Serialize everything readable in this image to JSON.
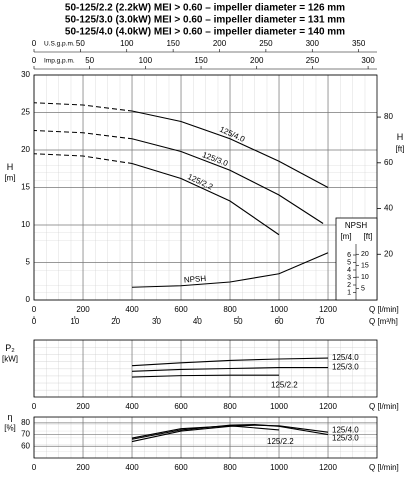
{
  "chart_data": [
    {
      "type": "line",
      "title": [
        "50-125/2.2 (2.2kW) MEI > 0.60 – impeller diameter = 126 mm",
        "50-125/3.0 (3.0kW) MEI > 0.60 – impeller diameter = 131 mm",
        "50-125/4.0 (4.0kW) MEI > 0.60 – impeller diameter = 140 mm"
      ],
      "xlabel": "Q [l/min]",
      "ylabel": "H",
      "ylabel_unit": "[m]",
      "y2label": "H",
      "y2label_unit": "[ft]",
      "xlim": [
        0,
        1400
      ],
      "xticks": [
        0,
        200,
        400,
        600,
        800,
        1000,
        1200
      ],
      "ylim": [
        0,
        30
      ],
      "yticks": [
        0,
        5,
        10,
        15,
        20,
        25,
        30
      ],
      "y2lim": [
        0,
        98.4
      ],
      "y2ticks": [
        20,
        40,
        60,
        80
      ],
      "grid": true,
      "top_axes": [
        {
          "label": "U.S.g.p.m.",
          "xlim": [
            0,
            369.8
          ],
          "xticks": [
            0,
            50,
            100,
            150,
            200,
            250,
            300,
            350
          ]
        },
        {
          "label": "Imp.g.p.m.",
          "xlim": [
            0,
            308
          ],
          "xticks": [
            0,
            50,
            100,
            150,
            200,
            250,
            300
          ]
        }
      ],
      "bottom_axis2": {
        "label": "Q [m³/h]",
        "xlim": [
          0,
          84
        ],
        "xticks": [
          0,
          10,
          20,
          30,
          40,
          50,
          60,
          70
        ]
      },
      "npsh_scale": {
        "label": "NPSH",
        "unit_left": "[m]",
        "unit_right": "[ft]",
        "yticks": [
          1,
          2,
          3,
          4,
          5,
          6
        ],
        "y2ticks": [
          5,
          10,
          15,
          20
        ]
      },
      "series": [
        {
          "name": "125/4.0",
          "color": "#000000",
          "x": [
            0,
            200,
            400,
            600,
            800,
            1000,
            1200
          ],
          "values": [
            26.3,
            26,
            25.2,
            23.8,
            21.5,
            18.5,
            15
          ]
        },
        {
          "name": "125/3.0",
          "color": "#000000",
          "x": [
            0,
            200,
            400,
            600,
            800,
            1000,
            1180
          ],
          "values": [
            22.6,
            22.3,
            21.5,
            19.8,
            17.3,
            14,
            10.2
          ]
        },
        {
          "name": "125/2.2",
          "color": "#000000",
          "x": [
            0,
            200,
            400,
            600,
            800,
            1000
          ],
          "values": [
            19.5,
            19.2,
            18.2,
            16.2,
            13.2,
            8.7
          ]
        },
        {
          "name": "NPSH",
          "color": "#000000",
          "x": [
            400,
            600,
            800,
            1000,
            1200
          ],
          "values": [
            1.7,
            1.9,
            2.4,
            3.5,
            6.3
          ]
        }
      ]
    },
    {
      "type": "line",
      "xlabel": "Q [l/min]",
      "ylabel": "P₂",
      "ylabel_unit": "[kW]",
      "xlim": [
        0,
        1400
      ],
      "xticks": [
        0,
        200,
        400,
        600,
        800,
        1000,
        1200
      ],
      "ylim": [
        0,
        6
      ],
      "grid": true,
      "series": [
        {
          "name": "125/4.0",
          "color": "#000000",
          "x": [
            400,
            600,
            800,
            1000,
            1200
          ],
          "values": [
            3.3,
            3.6,
            3.85,
            4.0,
            4.1
          ]
        },
        {
          "name": "125/3.0",
          "color": "#000000",
          "x": [
            400,
            600,
            800,
            1000,
            1200
          ],
          "values": [
            2.7,
            2.9,
            3.0,
            3.1,
            3.1
          ]
        },
        {
          "name": "125/2.2",
          "color": "#000000",
          "x": [
            400,
            600,
            800,
            1000
          ],
          "values": [
            2.1,
            2.25,
            2.3,
            2.3
          ]
        }
      ]
    },
    {
      "type": "line",
      "xlabel": "Q [l/min]",
      "ylabel": "η",
      "ylabel_unit": "[%]",
      "xlim": [
        0,
        1400
      ],
      "xticks": [
        0,
        200,
        400,
        600,
        800,
        1000,
        1200
      ],
      "ylim": [
        50,
        85
      ],
      "yticks": [
        60,
        70,
        80
      ],
      "grid": true,
      "series": [
        {
          "name": "125/4.0",
          "color": "#000000",
          "x": [
            400,
            600,
            800,
            900,
            1000,
            1200
          ],
          "values": [
            64,
            73,
            77,
            78,
            77.5,
            72
          ]
        },
        {
          "name": "125/3.0",
          "color": "#000000",
          "x": [
            400,
            600,
            800,
            900,
            1000,
            1200
          ],
          "values": [
            66,
            74,
            78,
            78.5,
            77,
            70
          ]
        },
        {
          "name": "125/2.2",
          "color": "#000000",
          "x": [
            400,
            600,
            800,
            1000
          ],
          "values": [
            67,
            75,
            77.5,
            74
          ]
        }
      ]
    }
  ]
}
